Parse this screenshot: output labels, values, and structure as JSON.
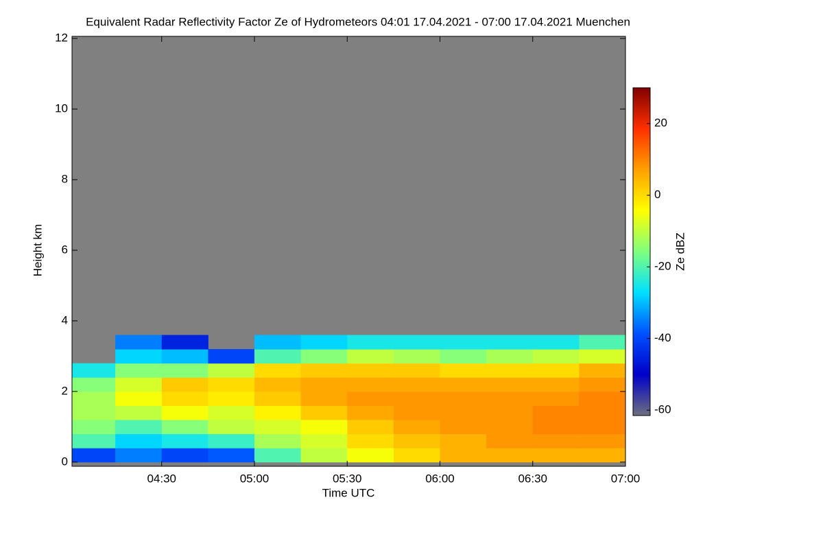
{
  "chart_data": {
    "type": "heatmap",
    "title": "Equivalent Radar Reflectivity Factor Ze of Hydrometeors   04:01 17.04.2021 - 07:00 17.04.2021 Muenchen",
    "x_label": "Time UTC",
    "y_label": "Height km",
    "colorbar_label": "Ze dBZ",
    "xlim": [
      4.0167,
      7.0
    ],
    "xticks": [
      {
        "value": 4.5,
        "label": "04:30"
      },
      {
        "value": 5.0,
        "label": "05:00"
      },
      {
        "value": 5.5,
        "label": "05:30"
      },
      {
        "value": 6.0,
        "label": "06:00"
      },
      {
        "value": 6.5,
        "label": "06:30"
      },
      {
        "value": 7.0,
        "label": "07:00"
      }
    ],
    "ylim": [
      -0.12,
      12.06
    ],
    "yticks": [
      0,
      2,
      4,
      6,
      8,
      10,
      12
    ],
    "zlim": [
      -61.5,
      30
    ],
    "zticks": [
      -60,
      -40,
      -20,
      0,
      20
    ],
    "missing_color": "#808080",
    "colorscale": [
      "#6e6e80",
      "#0000c8",
      "#0050ff",
      "#00e0ff",
      "#80ff80",
      "#ffff00",
      "#ffa000",
      "#ff3000",
      "#800000"
    ],
    "x_bins": [
      4.0167,
      4.25,
      4.5,
      4.75,
      5.0,
      5.25,
      5.5,
      5.75,
      6.0,
      6.25,
      6.5,
      6.75,
      7.0
    ],
    "y_bins": [
      0,
      0.4,
      0.8,
      1.2,
      1.6,
      2.0,
      2.4,
      2.8,
      3.2,
      3.6
    ],
    "z": [
      [
        -40,
        -35,
        -40,
        -38,
        -20,
        -10,
        -5,
        0,
        5,
        5,
        5,
        5
      ],
      [
        -20,
        -28,
        -25,
        -22,
        -12,
        -8,
        0,
        3,
        5,
        8,
        8,
        8
      ],
      [
        -15,
        -20,
        -15,
        -10,
        -8,
        -5,
        2,
        6,
        8,
        8,
        10,
        10
      ],
      [
        -12,
        -10,
        -5,
        -8,
        -3,
        2,
        6,
        8,
        8,
        8,
        10,
        10
      ],
      [
        -12,
        -5,
        0,
        -2,
        2,
        6,
        8,
        8,
        8,
        8,
        8,
        10
      ],
      [
        -15,
        -8,
        2,
        0,
        4,
        6,
        6,
        6,
        6,
        6,
        6,
        8
      ],
      [
        -25,
        -15,
        -15,
        -10,
        0,
        2,
        2,
        2,
        0,
        0,
        0,
        5
      ],
      [
        null,
        -28,
        -30,
        -40,
        -20,
        -15,
        -10,
        -12,
        -15,
        -12,
        -10,
        -8
      ],
      [
        null,
        -35,
        -45,
        null,
        -30,
        -28,
        -25,
        -25,
        -25,
        -25,
        -25,
        -20
      ]
    ]
  }
}
